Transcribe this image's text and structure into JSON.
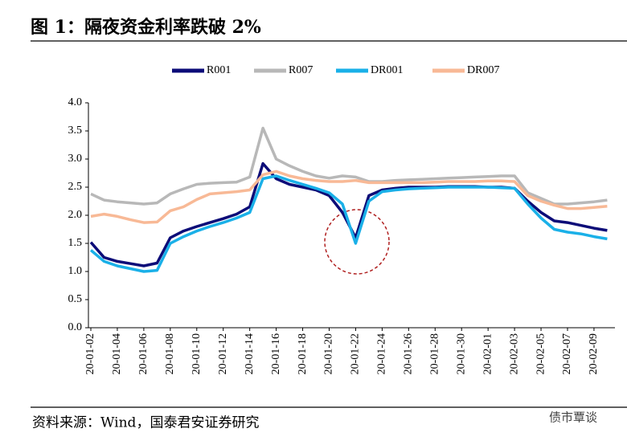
{
  "title": "图 1：隔夜资金利率跌破 2%",
  "source": "资料来源：Wind，国泰君安证券研究",
  "watermark": "债市覃谈",
  "chart_data": {
    "type": "line",
    "categories": [
      "20-01-02",
      null,
      "20-01-04",
      null,
      "20-01-06",
      null,
      "20-01-08",
      null,
      "20-01-10",
      null,
      "20-01-12",
      null,
      "20-01-14",
      null,
      "20-01-16",
      null,
      "20-01-18",
      null,
      "20-01-20",
      null,
      "20-01-22",
      null,
      "20-01-24",
      null,
      "20-01-26",
      null,
      "20-01-28",
      null,
      "20-01-30",
      null,
      "20-02-01",
      null,
      "20-02-03",
      null,
      "20-02-05",
      null,
      "20-02-07",
      null,
      "20-02-09",
      null
    ],
    "series": [
      {
        "name": "R001",
        "color": "#0c0c78",
        "values": [
          1.52,
          1.25,
          1.18,
          1.14,
          1.1,
          1.15,
          1.6,
          1.72,
          1.8,
          1.87,
          1.94,
          2.02,
          2.15,
          2.92,
          2.65,
          2.55,
          2.5,
          2.45,
          2.35,
          2.05,
          1.6,
          2.35,
          2.45,
          2.48,
          2.5,
          2.5,
          2.5,
          2.51,
          2.51,
          2.51,
          2.5,
          2.5,
          2.48,
          2.25,
          2.05,
          1.9,
          1.87,
          1.82,
          1.77,
          1.73
        ]
      },
      {
        "name": "R007",
        "color": "#b8b8b8",
        "values": [
          2.38,
          2.27,
          2.24,
          2.22,
          2.2,
          2.22,
          2.38,
          2.47,
          2.55,
          2.57,
          2.58,
          2.59,
          2.68,
          3.55,
          3.0,
          2.88,
          2.78,
          2.7,
          2.66,
          2.7,
          2.68,
          2.6,
          2.6,
          2.62,
          2.63,
          2.64,
          2.65,
          2.66,
          2.67,
          2.68,
          2.69,
          2.7,
          2.7,
          2.4,
          2.3,
          2.2,
          2.2,
          2.22,
          2.24,
          2.27
        ]
      },
      {
        "name": "DR001",
        "color": "#1ab0e8",
        "values": [
          1.38,
          1.18,
          1.1,
          1.05,
          1.0,
          1.02,
          1.5,
          1.62,
          1.72,
          1.8,
          1.87,
          1.95,
          2.05,
          2.65,
          2.7,
          2.62,
          2.55,
          2.48,
          2.4,
          2.2,
          1.5,
          2.25,
          2.42,
          2.45,
          2.47,
          2.48,
          2.49,
          2.5,
          2.5,
          2.5,
          2.5,
          2.49,
          2.48,
          2.2,
          1.95,
          1.75,
          1.7,
          1.67,
          1.62,
          1.58
        ]
      },
      {
        "name": "DR007",
        "color": "#f8b996",
        "values": [
          1.98,
          2.02,
          1.98,
          1.92,
          1.87,
          1.88,
          2.08,
          2.15,
          2.28,
          2.38,
          2.4,
          2.42,
          2.45,
          2.72,
          2.78,
          2.7,
          2.65,
          2.62,
          2.6,
          2.6,
          2.62,
          2.58,
          2.58,
          2.58,
          2.58,
          2.58,
          2.59,
          2.6,
          2.6,
          2.6,
          2.61,
          2.61,
          2.6,
          2.35,
          2.25,
          2.18,
          2.12,
          2.12,
          2.14,
          2.16
        ]
      }
    ],
    "ylim": [
      0,
      4
    ],
    "yticks": [
      {
        "value": 0,
        "label": "0.0"
      },
      0.5,
      {
        "value": 1,
        "label": "1.0"
      },
      1.5,
      {
        "value": 2,
        "label": "2.0"
      },
      2.5,
      {
        "value": 3,
        "label": "3.0"
      },
      3.5,
      {
        "value": 4,
        "label": "4.0"
      }
    ],
    "legend": "top"
  }
}
